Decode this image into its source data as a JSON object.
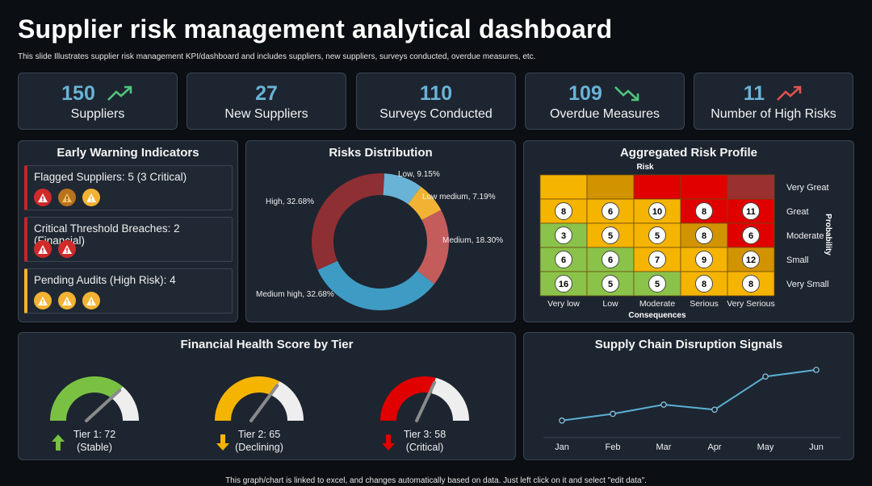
{
  "header": {
    "title": "Supplier risk management analytical dashboard",
    "subtitle": "This slide Illustrates supplier risk management KPI/dashboard and includes suppliers, new suppliers, surveys conducted, overdue measures, etc."
  },
  "kpis": [
    {
      "value": "150",
      "label": "Suppliers",
      "icon": "trend-up-icon",
      "icon_color": "#4fc47e"
    },
    {
      "value": "27",
      "label": "New Suppliers",
      "icon": "",
      "icon_color": ""
    },
    {
      "value": "110",
      "label": "Surveys Conducted",
      "icon": "",
      "icon_color": ""
    },
    {
      "value": "109",
      "label": "Overdue Measures",
      "icon": "trend-down-icon",
      "icon_color": "#4fc47e"
    },
    {
      "value": "11",
      "label": "Number of High Risks",
      "icon": "trend-up-icon",
      "icon_color": "#e0534f"
    }
  ],
  "early_warning": {
    "title": "Early Warning Indicators",
    "items": [
      {
        "text": "Flagged Suppliers: 5 (3 Critical)",
        "accent": "#c0262c",
        "icons": [
          "red",
          "orange",
          "yellow"
        ]
      },
      {
        "text": "Critical Threshold Breaches: 2 (Financial)",
        "accent": "#c0262c",
        "icons": [
          "red",
          "red"
        ]
      },
      {
        "text": "Pending Audits (High Risk): 4",
        "accent": "#f2b233",
        "icons": [
          "yellow",
          "yellow",
          "yellow"
        ]
      }
    ]
  },
  "risks_distribution": {
    "title": "Risks Distribution",
    "chart_data": {
      "type": "pie",
      "slices": [
        {
          "name": "Low",
          "value": 9.15,
          "label": "Low, 9.15%",
          "color": "#69b3d6"
        },
        {
          "name": "Low medium",
          "value": 7.19,
          "label": "Low medium, 7.19%",
          "color": "#f2b233"
        },
        {
          "name": "Medium",
          "value": 18.3,
          "label": "Medium, 18.30%",
          "color": "#c45c5c"
        },
        {
          "name": "Medium high",
          "value": 32.68,
          "label": "Medium high, 32.68%",
          "color": "#3e9cc4"
        },
        {
          "name": "High",
          "value": 32.68,
          "label": "High, 32.68%",
          "color": "#8e2f33"
        }
      ]
    }
  },
  "risk_profile": {
    "title": "Aggregated Risk Profile",
    "top_label": "Risk",
    "x_axis_title": "Consequences",
    "y_axis_title": "Probability",
    "columns": [
      "Very low",
      "Low",
      "Moderate",
      "Serious",
      "Very Serious"
    ],
    "rows": [
      "Very Great",
      "Great",
      "Moderate",
      "Small",
      "Very Small"
    ],
    "cells": [
      [
        {
          "v": "",
          "c": "#f5b400"
        },
        {
          "v": "",
          "c": "#d19300"
        },
        {
          "v": "",
          "c": "#e00000"
        },
        {
          "v": "",
          "c": "#e00000"
        },
        {
          "v": "",
          "c": "#9b3030"
        }
      ],
      [
        {
          "v": "8",
          "c": "#f5b400"
        },
        {
          "v": "6",
          "c": "#f5b400"
        },
        {
          "v": "10",
          "c": "#f5b400"
        },
        {
          "v": "8",
          "c": "#e00000"
        },
        {
          "v": "11",
          "c": "#e00000"
        }
      ],
      [
        {
          "v": "3",
          "c": "#8bc34a"
        },
        {
          "v": "5",
          "c": "#f5b400"
        },
        {
          "v": "5",
          "c": "#f5b400"
        },
        {
          "v": "8",
          "c": "#d19300"
        },
        {
          "v": "6",
          "c": "#e00000"
        }
      ],
      [
        {
          "v": "6",
          "c": "#8bc34a"
        },
        {
          "v": "6",
          "c": "#8bc34a"
        },
        {
          "v": "7",
          "c": "#f5b400"
        },
        {
          "v": "9",
          "c": "#f5b400"
        },
        {
          "v": "12",
          "c": "#d19300"
        }
      ],
      [
        {
          "v": "16",
          "c": "#8bc34a"
        },
        {
          "v": "5",
          "c": "#8bc34a"
        },
        {
          "v": "5",
          "c": "#8bc34a"
        },
        {
          "v": "8",
          "c": "#f5b400"
        },
        {
          "v": "8",
          "c": "#f5b400"
        }
      ]
    ]
  },
  "financial_health": {
    "title": "Financial Health Score by Tier",
    "gauges": [
      {
        "name": "Tier 1",
        "score": 72,
        "line1": "Tier 1: 72",
        "line2": "(Stable)",
        "color": "#7ac143",
        "arrow": "up",
        "arrow_color": "#7ac143"
      },
      {
        "name": "Tier 2",
        "score": 65,
        "line1": "Tier 2: 65",
        "line2": "(Declining)",
        "color": "#f5b400",
        "arrow": "down",
        "arrow_color": "#f5b400"
      },
      {
        "name": "Tier 3",
        "score": 58,
        "line1": "Tier 3: 58",
        "line2": "(Critical)",
        "color": "#e00000",
        "arrow": "down",
        "arrow_color": "#e00000"
      }
    ]
  },
  "disruption": {
    "title": "Supply Chain Disruption Signals",
    "chart_data": {
      "type": "line",
      "categories": [
        "Jan",
        "Feb",
        "Mar",
        "Apr",
        "May",
        "Jun"
      ],
      "values": [
        1,
        2.6,
        4.8,
        3.6,
        11.5,
        13.1
      ],
      "ylim": [
        0,
        15
      ],
      "color": "#5ab0d4"
    }
  },
  "footer": "This graph/chart is linked to excel, and changes automatically based on data. Just left click on it and select \"edit data\"."
}
